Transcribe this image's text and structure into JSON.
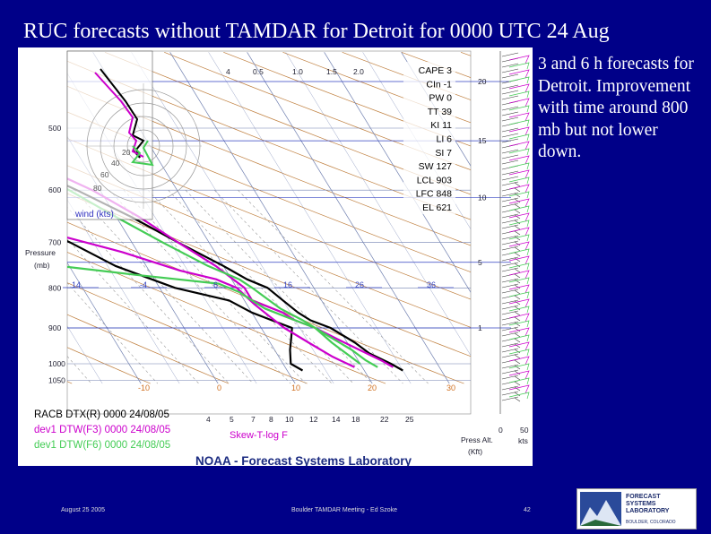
{
  "slide": {
    "title": "RUC forecasts without TAMDAR for Detroit for 0000 UTC 24 Aug",
    "notes": "3 and 6 h forecasts for Detroit. Improvement with time around 800 mb but not lower down.",
    "footer_date": "August 25 2005",
    "footer_center": "Boulder TAMDAR Meeting - Ed Szoke",
    "page_number": "42",
    "logo_lines": [
      "FORECAST",
      "SYSTEMS",
      "LABORATORY"
    ],
    "logo_sub": "BOULDER, COLORADO"
  },
  "chart_data": {
    "type": "line",
    "diagram": "Skew-T log-P",
    "pressure_axis": {
      "label": "Pressure (mb)",
      "ticks": [
        500,
        600,
        700,
        800,
        900,
        1000,
        1050
      ]
    },
    "height_axis": {
      "label": "Press Alt. (Kft)",
      "ticks": [
        "20",
        "15",
        "10",
        "5",
        "1"
      ]
    },
    "wind_axis": {
      "ticks": [
        "0",
        "50"
      ],
      "unit": "kts"
    },
    "isotherm_labels_bottom": [
      "-10",
      "0",
      "10",
      "20",
      "30"
    ],
    "isotherm_labels_f": [
      "14",
      "-4",
      "6",
      "16",
      "26",
      "36"
    ],
    "mixing_ratio_labels": [
      "4",
      "5",
      "7",
      "8",
      "10",
      "12",
      "14",
      "18",
      "22",
      "25"
    ],
    "mixing_ratio_labels_top": [
      "4",
      "0.5",
      "1.0",
      "1.5",
      "2.0"
    ],
    "hodograph": {
      "label": "wind (kts)",
      "rings": [
        "20",
        "40",
        "60",
        "80"
      ]
    },
    "indices": [
      "CAPE 3",
      "CIn -1",
      "PW 0",
      "TT 39",
      "KI 11",
      "LI 6",
      "SI 7",
      "SW 127",
      "LCL 903",
      "LFC 848",
      "EL 621"
    ],
    "legend": [
      {
        "label": "RACB DTX(R) 0000 24/08/05",
        "color": "#000000"
      },
      {
        "label": "dev1 DTW(F3) 0000 24/08/05",
        "color": "#cc00cc"
      },
      {
        "label": "dev1 DTW(F6) 0000 24/08/05",
        "color": "#44cc55"
      }
    ],
    "skew_label": "Skew-T-log F",
    "credit": "NOAA - Forecast Systems Laboratory",
    "series": [
      {
        "color": "#000000",
        "temperature": [
          [
            500,
            -14
          ],
          [
            550,
            -9
          ],
          [
            600,
            -3
          ],
          [
            650,
            2
          ],
          [
            700,
            6
          ],
          [
            750,
            10
          ],
          [
            780,
            12
          ],
          [
            800,
            14
          ],
          [
            830,
            15
          ],
          [
            860,
            16
          ],
          [
            880,
            17
          ],
          [
            900,
            19
          ],
          [
            940,
            21
          ],
          [
            970,
            22
          ],
          [
            1000,
            24
          ],
          [
            1020,
            25
          ]
        ],
        "dewpoint": [
          [
            420,
            -40
          ],
          [
            460,
            -34
          ],
          [
            500,
            -27
          ],
          [
            540,
            -22
          ],
          [
            580,
            -18
          ],
          [
            620,
            -14
          ],
          [
            660,
            -12
          ],
          [
            700,
            -8
          ],
          [
            750,
            -4
          ],
          [
            800,
            2
          ],
          [
            830,
            8
          ],
          [
            860,
            10
          ],
          [
            880,
            12
          ],
          [
            900,
            14
          ],
          [
            930,
            13
          ],
          [
            960,
            12
          ],
          [
            1000,
            11
          ],
          [
            1020,
            12
          ]
        ]
      },
      {
        "color": "#cc00cc",
        "temperature": [
          [
            440,
            -18
          ],
          [
            500,
            -12
          ],
          [
            550,
            -7
          ],
          [
            600,
            -1
          ],
          [
            650,
            3
          ],
          [
            700,
            6
          ],
          [
            750,
            9
          ],
          [
            800,
            11
          ],
          [
            830,
            11
          ],
          [
            860,
            14
          ],
          [
            880,
            15
          ],
          [
            900,
            17
          ],
          [
            930,
            19
          ],
          [
            960,
            21
          ],
          [
            990,
            23
          ],
          [
            1010,
            24
          ]
        ],
        "dewpoint": [
          [
            430,
            -45
          ],
          [
            480,
            -38
          ],
          [
            520,
            -33
          ],
          [
            560,
            -28
          ],
          [
            600,
            -24
          ],
          [
            640,
            -18
          ],
          [
            680,
            -10
          ],
          [
            720,
            -2
          ],
          [
            760,
            4
          ],
          [
            780,
            8
          ],
          [
            800,
            10
          ],
          [
            840,
            11
          ],
          [
            870,
            12
          ],
          [
            900,
            13
          ],
          [
            940,
            15
          ],
          [
            980,
            17
          ],
          [
            1010,
            19
          ]
        ]
      },
      {
        "color": "#44cc55",
        "temperature": [
          [
            520,
            -10
          ],
          [
            560,
            -8
          ],
          [
            600,
            -4
          ],
          [
            650,
            0
          ],
          [
            700,
            4
          ],
          [
            750,
            8
          ],
          [
            780,
            11
          ],
          [
            800,
            12
          ],
          [
            850,
            14
          ],
          [
            880,
            16
          ],
          [
            920,
            18
          ],
          [
            960,
            20
          ],
          [
            990,
            21
          ],
          [
            1010,
            22
          ]
        ],
        "dewpoint": [
          [
            520,
            -14
          ],
          [
            550,
            -13
          ],
          [
            580,
            -16
          ],
          [
            620,
            -20
          ],
          [
            660,
            -17
          ],
          [
            700,
            -16
          ],
          [
            740,
            -16
          ],
          [
            770,
            -2
          ],
          [
            790,
            8
          ],
          [
            810,
            10
          ],
          [
            830,
            11
          ],
          [
            850,
            12
          ],
          [
            870,
            14
          ],
          [
            900,
            17
          ],
          [
            940,
            18
          ],
          [
            970,
            19
          ],
          [
            1000,
            20
          ]
        ]
      }
    ]
  }
}
